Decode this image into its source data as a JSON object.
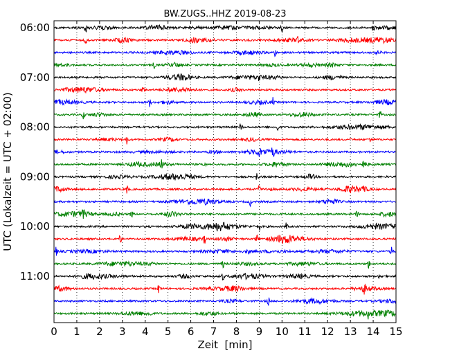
{
  "chart_data": {
    "type": "line",
    "title": "BW.ZUGS..HHZ 2019-08-23",
    "xlabel": "Zeit  [min]",
    "ylabel": "UTC (Lokalzeit = UTC + 02:00)",
    "xlim": [
      0,
      15
    ],
    "x_ticks": [
      "0",
      "1",
      "2",
      "3",
      "4",
      "5",
      "6",
      "7",
      "8",
      "9",
      "10",
      "11",
      "12",
      "13",
      "14",
      "15"
    ],
    "y_tick_labels": [
      {
        "label": "06:00",
        "trace": 0
      },
      {
        "label": "07:00",
        "trace": 4
      },
      {
        "label": "08:00",
        "trace": 8
      },
      {
        "label": "09:00",
        "trace": 12
      },
      {
        "label": "10:00",
        "trace": 16
      },
      {
        "label": "11:00",
        "trace": 20
      }
    ],
    "grid": "vertical dotted at each minute",
    "trace_count": 24,
    "color_cycle": [
      "#000000",
      "#ff0000",
      "#0000ff",
      "#008000"
    ],
    "traces": [
      {
        "start": "06:00",
        "spikes": [
          1.4,
          10.0,
          14.0
        ]
      },
      {
        "start": "06:15",
        "spikes": [
          1.4,
          10.7
        ]
      },
      {
        "start": "06:30",
        "spikes": [
          9.7
        ]
      },
      {
        "start": "06:45",
        "spikes": [
          4.4
        ]
      },
      {
        "start": "07:00",
        "spikes": [
          9.0
        ]
      },
      {
        "start": "07:15",
        "spikes": [
          3.9
        ]
      },
      {
        "start": "07:30",
        "spikes": [
          4.2,
          9.6
        ]
      },
      {
        "start": "07:45",
        "spikes": [
          1.3,
          14.3
        ]
      },
      {
        "start": "08:00",
        "spikes": [
          8.2,
          9.8
        ]
      },
      {
        "start": "08:15",
        "spikes": [
          3.2,
          13.9
        ]
      },
      {
        "start": "08:30",
        "spikes": [
          9.0,
          9.6
        ]
      },
      {
        "start": "08:45",
        "spikes": [
          4.7,
          6.6,
          13.6
        ]
      },
      {
        "start": "09:00",
        "spikes": [
          8.9
        ]
      },
      {
        "start": "09:15",
        "spikes": [
          3.2,
          9.0,
          13.6
        ]
      },
      {
        "start": "09:30",
        "spikes": [
          8.6
        ]
      },
      {
        "start": "09:45",
        "spikes": [
          1.3,
          3.4,
          13.3
        ]
      },
      {
        "start": "10:00",
        "spikes": [
          9.0,
          10.2
        ]
      },
      {
        "start": "10:15",
        "spikes": [
          2.9,
          6.6,
          8.9
        ]
      },
      {
        "start": "10:30",
        "spikes": [
          0.1,
          8.5,
          14.8
        ]
      },
      {
        "start": "10:45",
        "spikes": [
          7.4,
          13.8
        ]
      },
      {
        "start": "11:00",
        "spikes": [
          7.4,
          14.3
        ]
      },
      {
        "start": "11:15",
        "spikes": [
          4.6,
          13.6
        ]
      },
      {
        "start": "11:30",
        "spikes": [
          9.4
        ]
      },
      {
        "start": "11:45",
        "spikes": [
          4.2,
          13.8
        ]
      }
    ]
  }
}
